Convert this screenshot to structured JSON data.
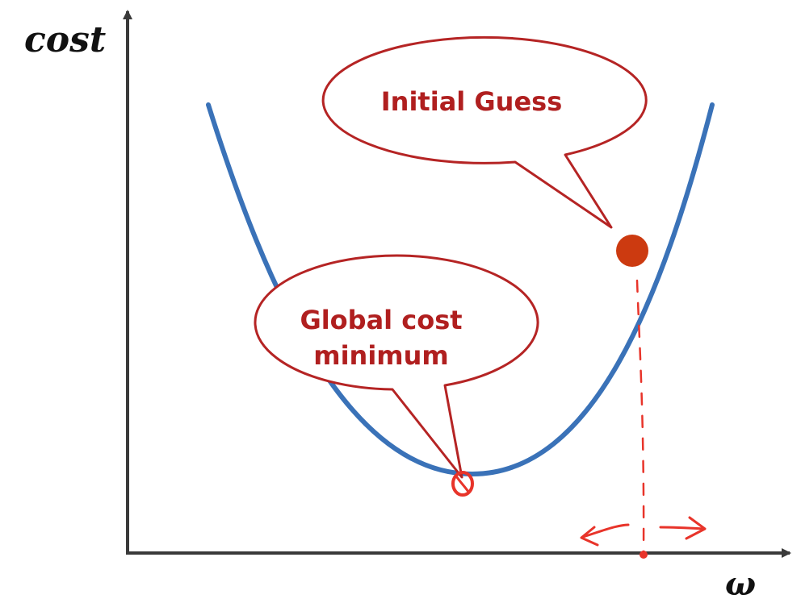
{
  "axes": {
    "y_label": "cost",
    "x_label": "ω"
  },
  "callouts": {
    "initial_guess": {
      "text": "Initial Guess"
    },
    "global_minimum": {
      "line1": "Global cost",
      "line2": "minimum"
    }
  },
  "colors": {
    "curve": "#3a72b8",
    "callout": "#b52424",
    "callout_text": "#b01f1f",
    "guess_point": "#cc3a10",
    "annotation": "#e8342a",
    "axis": "#3a3a3a"
  }
}
